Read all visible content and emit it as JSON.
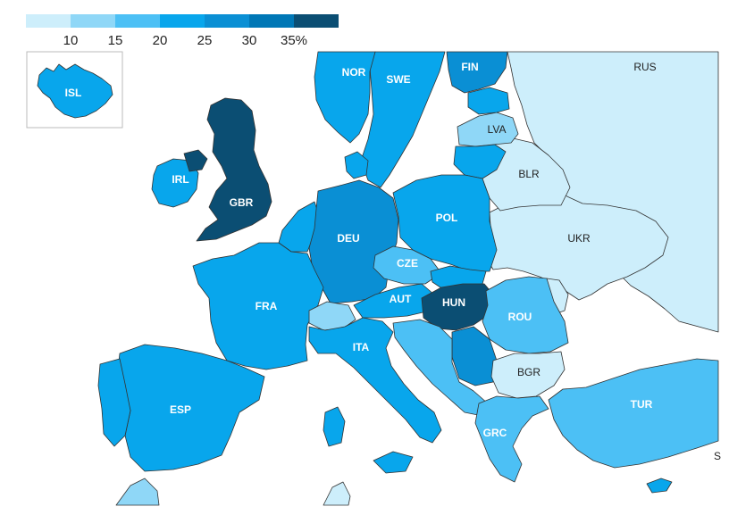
{
  "legend": {
    "swatch_colors": [
      "#cdeefb",
      "#8fd7f7",
      "#4cc0f5",
      "#08a6ec",
      "#0a8fd4",
      "#0077b6",
      "#0b4e73"
    ],
    "tick_labels": [
      "10",
      "15",
      "20",
      "25",
      "30",
      "35%"
    ]
  },
  "colors": {
    "sea": "#ffffff",
    "border": "#333333",
    "label_light": "#ffffff",
    "label_dark": "#222222"
  },
  "countries": {
    "isl": {
      "label": "ISL",
      "color": "#08a6ec"
    },
    "nor": {
      "label": "NOR",
      "color": "#08a6ec"
    },
    "swe": {
      "label": "SWE",
      "color": "#08a6ec"
    },
    "fin": {
      "label": "FIN",
      "color": "#0a8fd4"
    },
    "rus": {
      "label": "RUS",
      "color": "#cdeefb"
    },
    "lva": {
      "label": "LVA",
      "color": "#8fd7f7"
    },
    "blr": {
      "label": "BLR",
      "color": "#cdeefb"
    },
    "irl": {
      "label": "IRL",
      "color": "#08a6ec"
    },
    "gbr": {
      "label": "GBR",
      "color": "#0b4e73"
    },
    "deu": {
      "label": "DEU",
      "color": "#0a8fd4"
    },
    "pol": {
      "label": "POL",
      "color": "#08a6ec"
    },
    "ukr": {
      "label": "UKR",
      "color": "#cdeefb"
    },
    "cze": {
      "label": "CZE",
      "color": "#4cc0f5"
    },
    "fra": {
      "label": "FRA",
      "color": "#08a6ec"
    },
    "aut": {
      "label": "AUT",
      "color": "#08a6ec"
    },
    "hun": {
      "label": "HUN",
      "color": "#0b4e73"
    },
    "rou": {
      "label": "ROU",
      "color": "#4cc0f5"
    },
    "ita": {
      "label": "ITA",
      "color": "#08a6ec"
    },
    "bgr": {
      "label": "BGR",
      "color": "#cdeefb"
    },
    "esp": {
      "label": "ESP",
      "color": "#08a6ec"
    },
    "tur": {
      "label": "TUR",
      "color": "#4cc0f5"
    },
    "grc": {
      "label": "GRC",
      "color": "#4cc0f5"
    },
    "s_partial": {
      "label": "S",
      "color": "#ffffff"
    }
  },
  "unlabeled_colors": {
    "che": "#8fd7f7",
    "srb": "#0a8fd4",
    "svk": "#08a6ec",
    "benelux": "#08a6ec",
    "balkans": "#4cc0f5",
    "baltic_est": "#08a6ec",
    "baltic_ltu": "#08a6ec",
    "denmark": "#08a6ec",
    "portugal": "#08a6ec",
    "moldova": "#cdeefb",
    "cyprus": "#08a6ec",
    "morocco": "#8fd7f7"
  }
}
